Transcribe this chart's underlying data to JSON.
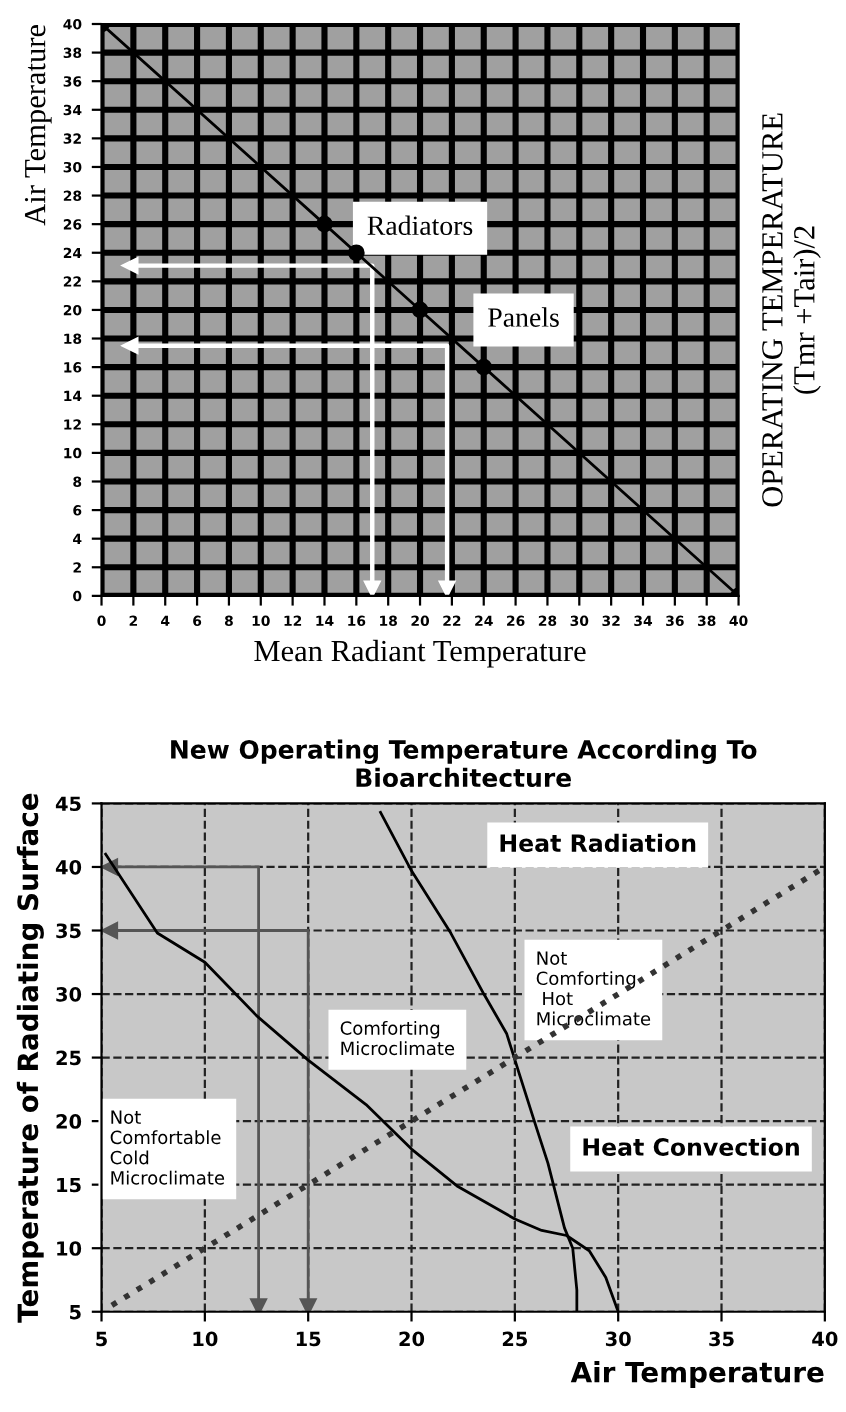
{
  "chart_data": [
    {
      "type": "line",
      "xlabel": "Mean Radiant Temperature",
      "ylabel": "Air Temperature",
      "y2label": "OPERATING TEMPERATURE\n(Tmr +Tair)/2",
      "xlim": [
        0,
        40
      ],
      "ylim": [
        0,
        40
      ],
      "xticks": [
        0,
        2,
        4,
        6,
        8,
        10,
        12,
        14,
        16,
        18,
        20,
        22,
        24,
        26,
        28,
        30,
        32,
        34,
        36,
        38,
        40
      ],
      "yticks": [
        0,
        2,
        4,
        6,
        8,
        10,
        12,
        14,
        16,
        18,
        20,
        22,
        24,
        26,
        28,
        30,
        32,
        34,
        36,
        38,
        40
      ],
      "grid": true,
      "series": [
        {
          "color": "#000000",
          "marker": "circle",
          "x": [
            0,
            14,
            16,
            20,
            24,
            40
          ],
          "values": [
            40,
            26,
            24,
            20,
            16,
            0
          ]
        },
        {
          "color": "#ffffff",
          "marker": "triangle",
          "x": [
            1.8,
            17,
            17
          ],
          "values": [
            23.1,
            23.1,
            0.5
          ]
        },
        {
          "color": "#ffffff",
          "marker": "triangle",
          "x": [
            1.8,
            21.7,
            21.7
          ],
          "values": [
            17.5,
            17.5,
            0.5
          ]
        }
      ],
      "annotations": [
        "Radiators",
        "Panels"
      ]
    },
    {
      "type": "line",
      "title": "New Operating Temperature According To\nBioarchitecture",
      "xlabel": "Air Temperature",
      "ylabel": "Temperature of Radiating Surface",
      "xlim": [
        5,
        40
      ],
      "ylim": [
        5,
        45
      ],
      "xticks": [
        5,
        10,
        15,
        20,
        25,
        30,
        35,
        40
      ],
      "yticks": [
        5,
        10,
        15,
        20,
        25,
        30,
        35,
        40,
        45
      ],
      "grid": true,
      "series": [
        {
          "color": "#000000",
          "marker": "none",
          "x": [
            5.2,
            7.7,
            10,
            12.5,
            15,
            17.8,
            20,
            22.2,
            25,
            26.3,
            27.5,
            28.6,
            29.4,
            30
          ],
          "values": [
            41,
            34.8,
            32.5,
            28.3,
            24.8,
            21.3,
            17.8,
            14.9,
            12.3,
            11.4,
            11,
            9.8,
            7.7,
            5
          ]
        },
        {
          "color": "#000000",
          "marker": "none",
          "x": [
            18.5,
            20,
            21.9,
            23.5,
            24.6,
            25.2,
            26,
            26.6,
            27.4,
            27.8,
            28,
            28
          ],
          "values": [
            44.3,
            39.7,
            34.8,
            30,
            26.9,
            23.8,
            19.7,
            16.7,
            11.6,
            10,
            6.7,
            5
          ]
        },
        {
          "color": "#333333",
          "marker": "none",
          "line_style": "dotted",
          "x": [
            5.5,
            40
          ],
          "values": [
            5.5,
            40
          ]
        },
        {
          "color": "#555555",
          "marker": "triangle",
          "x": [
            5.4,
            12.6,
            12.6
          ],
          "values": [
            40,
            40,
            5.4
          ]
        },
        {
          "color": "#555555",
          "marker": "triangle",
          "x": [
            5.4,
            15,
            15
          ],
          "values": [
            35,
            35,
            5.4
          ]
        }
      ],
      "annotations": [
        "Heat Radiation",
        "Heat Convection",
        "Not\nComforting\n Hot\nMicroclimate",
        "Comforting\nMicroclimate",
        "Not\nComfortable\nCold\nMicroclimate"
      ]
    }
  ]
}
